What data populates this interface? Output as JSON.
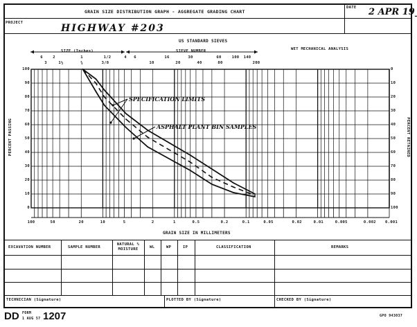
{
  "header": {
    "title": "GRAIN SIZE DISTRIBUTION GRAPH - AGGREGATE GRADING CHART",
    "date_label": "DATE",
    "date_value": "2 APR 19__",
    "project_label": "PROJECT",
    "project_value": "HIGHWAY #203"
  },
  "chart_labels": {
    "sieves_title": "US STANDARD SIEVES",
    "size_inches": "SIZE (Inches)",
    "sieve_number": "SIEVE NUMBER",
    "wet_analysis": "WET MECHANICAL ANALYSIS",
    "percent_passing": "PERCENT PASSING",
    "percent_retained": "PERCENT RETAINED",
    "grain_size": "GRAIN SIZE IN MILLIMETERS",
    "inch_row1": [
      "6",
      "2",
      "1",
      "1/2",
      "4"
    ],
    "inch_row2": [
      "3",
      "1½",
      "¾",
      "3/8"
    ],
    "sieve_row1": [
      "6",
      "16",
      "30",
      "60",
      "100",
      "140"
    ],
    "sieve_row2": [
      "10",
      "20",
      "40",
      "80",
      "200"
    ],
    "mm_ticks": [
      "100",
      "50",
      "20",
      "10",
      "5",
      "2",
      "1",
      "0.5",
      "0.2",
      "0.1",
      "0.05",
      "0.02",
      "0.01",
      "0.005",
      "0.002",
      "0.001"
    ],
    "passing_ticks": [
      "100",
      "90",
      "80",
      "70",
      "60",
      "50",
      "40",
      "30",
      "20",
      "10",
      "0"
    ],
    "retained_ticks": [
      "0",
      "10",
      "20",
      "30",
      "40",
      "50",
      "60",
      "70",
      "80",
      "90",
      "100"
    ]
  },
  "annotations": {
    "spec": "SPECIFICATION  LIMITS",
    "asphalt": "ASPHALT PLANT BIN SAMPLES"
  },
  "table": {
    "headers": [
      "EXCAVATION NUMBER",
      "SAMPLE NUMBER",
      "NATURAL % MOISTURE",
      "WL",
      "WP",
      "IP",
      "CLASSIFICATION",
      "REMARKS"
    ]
  },
  "footer": {
    "technician": "TECHNICIAN (Signature)",
    "plotted": "PLOTTED BY (Signature)",
    "checked": "CHECKED BY (Signature)",
    "form_prefix": "DD",
    "form_word": "FORM",
    "form_date": "1 AUG 57",
    "form_number": "1207",
    "gpo": "GPO 943037"
  },
  "chart_data": {
    "type": "line",
    "x_scale": "log",
    "xlim": [
      100,
      0.001
    ],
    "ylim": [
      0,
      100
    ],
    "xlabel": "GRAIN SIZE IN MILLIMETERS",
    "ylabel": "PERCENT PASSING",
    "series": [
      {
        "name": "SPECIFICATION  LIMITS",
        "style": "solid",
        "x": [
          19,
          12.5,
          9.5,
          4.75,
          2.36,
          0.6,
          0.3,
          0.15,
          0.075
        ],
        "y": [
          100,
          84,
          74,
          58,
          44,
          27,
          17,
          11,
          8
        ]
      },
      {
        "name": "SPECIFICATION  LIMITS",
        "style": "solid",
        "x": [
          19,
          12.5,
          9.5,
          4.75,
          2.36,
          0.6,
          0.3,
          0.15,
          0.075
        ],
        "y": [
          100,
          93,
          85,
          68,
          56,
          38,
          28,
          18,
          10
        ]
      },
      {
        "name": "ASPHALT PLANT BIN SAMPLES",
        "style": "dashed",
        "x": [
          19,
          12.5,
          9.5,
          4.75,
          2.36,
          0.6,
          0.3,
          0.15,
          0.075
        ],
        "y": [
          100,
          90,
          80,
          64,
          51,
          33,
          22,
          15,
          9
        ]
      }
    ]
  }
}
